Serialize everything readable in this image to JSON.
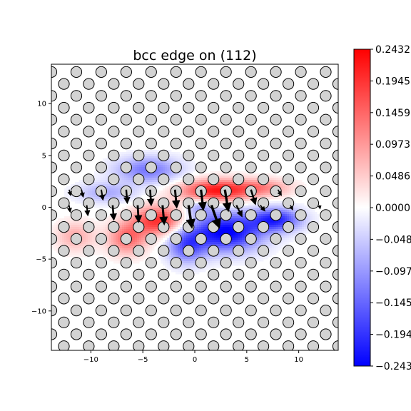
{
  "chart_data": {
    "type": "heatmap",
    "title": "bcc edge on (112)",
    "xlabel": "",
    "ylabel": "",
    "xlim": [
      -13.8,
      13.8
    ],
    "ylim": [
      -13.8,
      13.8
    ],
    "x_ticks": [
      {
        "value": -10,
        "label": "−10"
      },
      {
        "value": -5,
        "label": "−5"
      },
      {
        "value": 0,
        "label": "0"
      },
      {
        "value": 5,
        "label": "5"
      },
      {
        "value": 10,
        "label": "10"
      }
    ],
    "y_ticks": [
      {
        "value": 10,
        "label": "10"
      },
      {
        "value": 5,
        "label": "5"
      },
      {
        "value": 0,
        "label": "0"
      },
      {
        "value": -5,
        "label": "−5"
      },
      {
        "value": -10,
        "label": "−10"
      }
    ],
    "grid": false,
    "colormap": "bwr",
    "colorbar": {
      "range": [
        -0.2432,
        0.2432
      ],
      "ticks": [
        {
          "value": 0.2432,
          "label": "0.2432"
        },
        {
          "value": 0.1945,
          "label": "0.1945"
        },
        {
          "value": 0.1459,
          "label": "0.1459"
        },
        {
          "value": 0.0973,
          "label": "0.0973"
        },
        {
          "value": 0.0486,
          "label": "0.0486"
        },
        {
          "value": 0.0,
          "label": "0.0000"
        },
        {
          "value": -0.0486,
          "label": "−0.0486"
        },
        {
          "value": -0.0973,
          "label": "−0.0973"
        },
        {
          "value": -0.1459,
          "label": "−0.1459"
        },
        {
          "value": -0.1945,
          "label": "−0.1945"
        },
        {
          "value": -0.2432,
          "label": "−0.2432"
        }
      ]
    },
    "colors": {
      "positive": "#ff0000",
      "negative": "#0000ff",
      "zero": "#ffffff",
      "atom_fill": "#d3d3d3",
      "atom_edge": "#000000",
      "arrow": "#000000"
    },
    "lattice": {
      "description_units": "angstrom",
      "row_spacing": 1.15,
      "col_spacing": 2.4,
      "row_offset": 1.2,
      "atom_radius": 0.52
    },
    "field_lobes": [
      {
        "x": -4.5,
        "y": 3.6,
        "sx": 2.2,
        "sy": 0.9,
        "value": -0.13
      },
      {
        "x": -8.5,
        "y": 1.4,
        "sx": 2.0,
        "sy": 0.7,
        "value": -0.08
      },
      {
        "x": 2.0,
        "y": 1.6,
        "sx": 2.4,
        "sy": 0.75,
        "value": 0.22
      },
      {
        "x": 6.5,
        "y": 1.9,
        "sx": 2.0,
        "sy": 0.6,
        "value": 0.1
      },
      {
        "x": -3.5,
        "y": -1.3,
        "sx": 1.7,
        "sy": 1.0,
        "value": 0.2
      },
      {
        "x": -6.5,
        "y": -3.0,
        "sx": 1.3,
        "sy": 1.1,
        "value": 0.14
      },
      {
        "x": -11.5,
        "y": -2.8,
        "sx": 1.3,
        "sy": 1.0,
        "value": 0.08
      },
      {
        "x": 3.0,
        "y": -2.4,
        "sx": 2.4,
        "sy": 1.3,
        "value": -0.25
      },
      {
        "x": 7.8,
        "y": -1.2,
        "sx": 1.7,
        "sy": 0.8,
        "value": -0.2
      },
      {
        "x": -0.8,
        "y": -3.7,
        "sx": 1.3,
        "sy": 1.2,
        "value": -0.15
      },
      {
        "x": 0.5,
        "y": 0.0,
        "sx": 1.0,
        "sy": 0.6,
        "value": -0.08
      }
    ],
    "displacement_arrows": [
      {
        "x": -12.1,
        "y": 1.7,
        "dx": 0.15,
        "dy": -0.5
      },
      {
        "x": -10.9,
        "y": 1.7,
        "dx": 0.15,
        "dy": -0.65
      },
      {
        "x": -9.0,
        "y": 1.7,
        "dx": 0.15,
        "dy": -0.9
      },
      {
        "x": -6.6,
        "y": 1.7,
        "dx": 0.1,
        "dy": -1.2
      },
      {
        "x": -4.3,
        "y": 1.7,
        "dx": 0.1,
        "dy": -1.4
      },
      {
        "x": -1.9,
        "y": 1.7,
        "dx": 0.15,
        "dy": -1.6
      },
      {
        "x": 0.6,
        "y": 1.7,
        "dx": 0.2,
        "dy": -1.8
      },
      {
        "x": 2.9,
        "y": 1.7,
        "dx": 0.3,
        "dy": -1.9
      },
      {
        "x": 5.4,
        "y": 1.7,
        "dx": 0.4,
        "dy": -1.3
      },
      {
        "x": 8.0,
        "y": 1.7,
        "dx": 0.3,
        "dy": -0.5
      },
      {
        "x": -12.1,
        "y": 0.2,
        "dx": 0.1,
        "dy": -0.6
      },
      {
        "x": -10.4,
        "y": 0.2,
        "dx": 0.1,
        "dy": -0.9
      },
      {
        "x": -7.9,
        "y": 0.2,
        "dx": 0.1,
        "dy": -1.3
      },
      {
        "x": -5.5,
        "y": 0.2,
        "dx": 0.1,
        "dy": -1.5
      },
      {
        "x": -3.1,
        "y": 0.2,
        "dx": 0.15,
        "dy": -1.7
      },
      {
        "x": -0.6,
        "y": 0.2,
        "dx": 0.3,
        "dy": -2.0
      },
      {
        "x": 1.6,
        "y": 0.2,
        "dx": 0.7,
        "dy": -2.0
      },
      {
        "x": 4.0,
        "y": 0.2,
        "dx": 0.5,
        "dy": -1.0
      },
      {
        "x": 6.3,
        "y": 0.2,
        "dx": 0.4,
        "dy": -0.5
      },
      {
        "x": 9.2,
        "y": 0.2,
        "dx": 0.2,
        "dy": -0.4
      },
      {
        "x": 12.0,
        "y": 0.2,
        "dx": 0.05,
        "dy": -0.3
      }
    ]
  }
}
